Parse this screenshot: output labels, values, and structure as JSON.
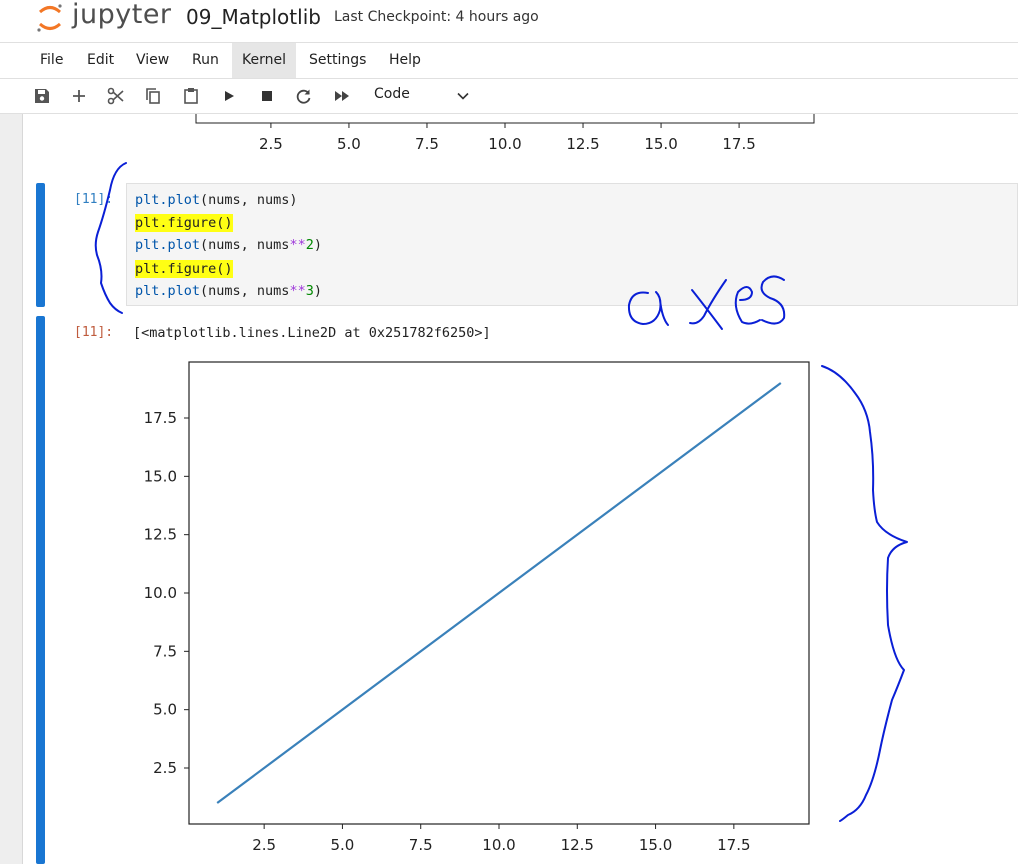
{
  "header": {
    "logo_text": "jupyter",
    "notebook_title": "09_Matplotlib",
    "checkpoint": "Last Checkpoint: 4 hours ago"
  },
  "menu": {
    "items": [
      "File",
      "Edit",
      "View",
      "Run",
      "Kernel",
      "Settings",
      "Help"
    ],
    "active": "Kernel"
  },
  "toolbar": {
    "icons": [
      "save-icon",
      "add-cell-icon",
      "cut-icon",
      "copy-icon",
      "paste-icon",
      "run-icon",
      "stop-icon",
      "restart-icon",
      "run-all-icon"
    ],
    "cell_type": "Code"
  },
  "prev_output_axis": {
    "ticks": [
      "2.5",
      "5.0",
      "7.5",
      "10.0",
      "12.5",
      "15.0",
      "17.5"
    ]
  },
  "cell": {
    "in_prompt": "[11]:",
    "out_prompt": "[11]:",
    "code": [
      "plt.plot(nums, nums)",
      "plt.figure()",
      "plt.plot(nums, nums**2)",
      "plt.figure()",
      "plt.plot(nums, nums**3)"
    ],
    "highlighted_lines": [
      1,
      3
    ],
    "output_text": "[<matplotlib.lines.Line2D at 0x251782f6250>]"
  },
  "annotation": {
    "handwritten_text": "axes",
    "color": "#0a1fd6"
  },
  "chart_data": {
    "type": "line",
    "x": [
      1,
      19
    ],
    "series": [
      {
        "values": [
          1,
          19
        ]
      }
    ],
    "xlim": [
      0.1,
      19.9
    ],
    "ylim": [
      0.1,
      19.9
    ],
    "xticks": [
      "2.5",
      "5.0",
      "7.5",
      "10.0",
      "12.5",
      "15.0",
      "17.5"
    ],
    "yticks": [
      "2.5",
      "5.0",
      "7.5",
      "10.0",
      "12.5",
      "15.0",
      "17.5"
    ],
    "line_color": "#3a81ba",
    "grid": false
  }
}
